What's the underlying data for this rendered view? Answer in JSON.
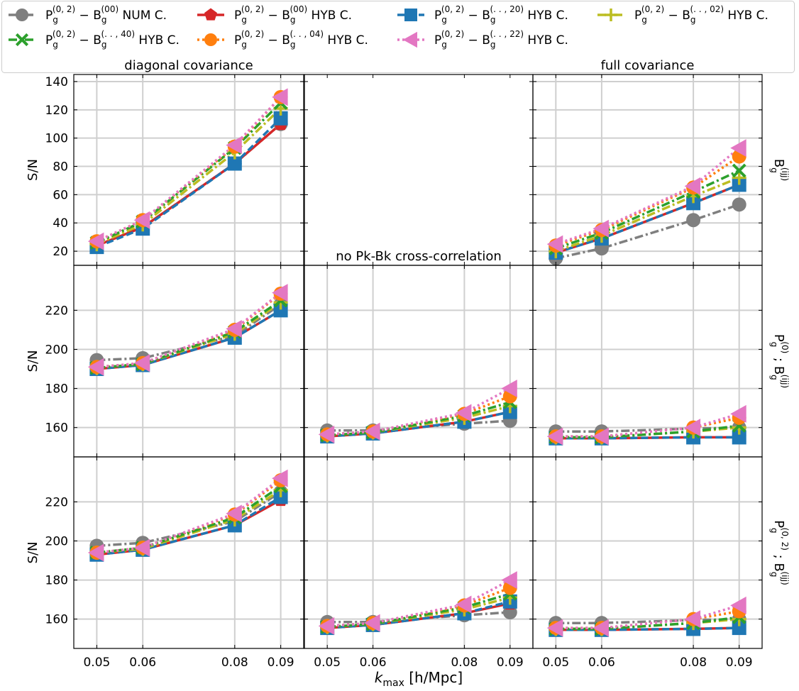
{
  "legend": {
    "position": "top",
    "entries": [
      {
        "name": "P_g^(0,2) − B_g^(00) NUM C.",
        "main": "P",
        "sub1": "g",
        "sup1": "(0, 2)",
        "dash": " − B",
        "sub2": "g",
        "sup2": "(00)",
        "tail": " NUM C.",
        "color": "#7f7f7f",
        "marker": "circle",
        "line": "dashdot"
      },
      {
        "name": "P_g^(0,2) − B_g^(00) HYB C.",
        "main": "P",
        "sub1": "g",
        "sup1": "(0, 2)",
        "dash": " − B",
        "sub2": "g",
        "sup2": "(00)",
        "tail": " HYB C.",
        "color": "#d62728",
        "marker": "pentagon",
        "line": "solid"
      },
      {
        "name": "P_g^(0,2) − B_g^(..,20) HYB C.",
        "main": "P",
        "sub1": "g",
        "sup1": "(0, 2)",
        "dash": " − B",
        "sub2": "g",
        "sup2": "(. . , 20)",
        "tail": " HYB C.",
        "color": "#1f77b4",
        "marker": "square",
        "line": "dashed"
      },
      {
        "name": "P_g^(0,2) − B_g^(..,02) HYB C.",
        "main": "P",
        "sub1": "g",
        "sup1": "(0, 2)",
        "dash": " − B",
        "sub2": "g",
        "sup2": "(. . , 02)",
        "tail": " HYB C.",
        "color": "#bcbd22",
        "marker": "plus",
        "line": "dashdot"
      },
      {
        "name": "P_g^(0,2) − B_g^(..,40) HYB C.",
        "main": "P",
        "sub1": "g",
        "sup1": "(0, 2)",
        "dash": " − B",
        "sub2": "g",
        "sup2": "(. . , 40)",
        "tail": " HYB C.",
        "color": "#2ca02c",
        "marker": "x",
        "line": "dashdot"
      },
      {
        "name": "P_g^(0,2) − B_g^(..,04) HYB C.",
        "main": "P",
        "sub1": "g",
        "sup1": "(0, 2)",
        "dash": " − B",
        "sub2": "g",
        "sup2": "(. . , 04)",
        "tail": " HYB C.",
        "color": "#ff7f0e",
        "marker": "circle",
        "line": "dotted"
      },
      {
        "name": "P_g^(0,2) − B_g^(..,22) HYB C.",
        "main": "P",
        "sub1": "g",
        "sup1": "(0, 2)",
        "dash": " − B",
        "sub2": "g",
        "sup2": "(. . , 22)",
        "tail": " HYB C.",
        "color": "#e377c2",
        "marker": "triangle-left",
        "line": "dotted"
      }
    ]
  },
  "xlabel": {
    "k": "k",
    "sub": "max",
    "rest": "   [h/Mpc]"
  },
  "ylabel": "S/N",
  "row_labels": [
    {
      "main": "B",
      "sub": "g",
      "sup": "(ijj)",
      "mid": "",
      "main2": "",
      "sub2": "",
      "sup2": ""
    },
    {
      "main": "P",
      "sub": "g",
      "sup": "(0)",
      "mid": " ; ",
      "main2": "B",
      "sub2": "g",
      "sup2": "(ijj)"
    },
    {
      "main": "P",
      "sub": "g",
      "sup": "(0, 2)",
      "mid": " ; ",
      "main2": "B",
      "sub2": "g",
      "sup2": "(ijj)"
    }
  ],
  "chart_data": {
    "type": "line",
    "grid": true,
    "x": [
      0.05,
      0.06,
      0.08,
      0.09
    ],
    "x_tick_labels": [
      "0.05",
      "0.06",
      "0.08",
      "0.09"
    ],
    "column_titles": [
      "diagonal covariance",
      "no Pk-Bk cross-correlation",
      "full covariance"
    ],
    "panels": [
      {
        "row": 0,
        "col": 0,
        "title": "diagonal covariance",
        "ylim": [
          10,
          145
        ],
        "yticks": [
          20,
          40,
          60,
          80,
          100,
          120,
          140
        ],
        "series": [
          [
            24,
            37,
            82,
            110
          ],
          [
            24,
            37,
            82,
            110
          ],
          [
            23,
            36,
            82,
            114
          ],
          [
            25,
            39,
            90,
            121
          ],
          [
            26,
            41,
            93,
            125
          ],
          [
            27,
            42,
            94,
            129
          ],
          [
            27,
            42,
            95,
            129
          ]
        ]
      },
      {
        "row": 0,
        "col": 1,
        "title": "",
        "empty": true,
        "ylim": [
          10,
          145
        ],
        "yticks": [],
        "series": []
      },
      {
        "row": 0,
        "col": 2,
        "title": "full covariance",
        "ylim": [
          10,
          145
        ],
        "yticks": [],
        "series": [
          [
            15,
            22,
            42,
            53
          ],
          [
            19,
            29,
            54,
            67
          ],
          [
            19,
            29,
            54,
            67
          ],
          [
            20,
            31,
            59,
            72
          ],
          [
            22,
            33,
            62,
            77
          ],
          [
            24,
            35,
            65,
            87
          ],
          [
            25,
            36,
            66,
            93
          ]
        ]
      },
      {
        "row": 1,
        "col": 0,
        "title": "",
        "ylim": [
          145,
          243
        ],
        "yticks": [
          160,
          180,
          200,
          220
        ],
        "series": [
          [
            194.5,
            195.5,
            207,
            223
          ],
          [
            190,
            192,
            206,
            220
          ],
          [
            190,
            192,
            206,
            220
          ],
          [
            190.5,
            192.5,
            208,
            224
          ],
          [
            190.5,
            192.5,
            209,
            225
          ],
          [
            191,
            193,
            210,
            228.5
          ],
          [
            191,
            193,
            210.5,
            229
          ]
        ]
      },
      {
        "row": 1,
        "col": 1,
        "title": "no Pk-Bk cross-correlation",
        "ylim": [
          145,
          243
        ],
        "yticks": [],
        "series": [
          [
            158.5,
            158.5,
            162,
            163.5
          ],
          [
            155.5,
            157,
            163,
            168
          ],
          [
            155.5,
            157,
            163,
            168
          ],
          [
            156,
            157.5,
            165,
            171
          ],
          [
            156,
            157.5,
            166,
            173
          ],
          [
            156.5,
            158,
            167,
            176
          ],
          [
            156.5,
            158,
            167.5,
            180
          ]
        ]
      },
      {
        "row": 1,
        "col": 2,
        "title": "",
        "ylim": [
          145,
          243
        ],
        "yticks": [],
        "series": [
          [
            158,
            158,
            159.5,
            160
          ],
          [
            154.5,
            154.5,
            155,
            155
          ],
          [
            154.5,
            154.5,
            155,
            155
          ],
          [
            155,
            155,
            158,
            160
          ],
          [
            155,
            155,
            158,
            161
          ],
          [
            155.5,
            155.5,
            160,
            165
          ],
          [
            155.5,
            155.5,
            160,
            167
          ]
        ]
      },
      {
        "row": 2,
        "col": 0,
        "title": "",
        "ylim": [
          145,
          243
        ],
        "yticks": [
          160,
          180,
          200,
          220
        ],
        "series": [
          [
            197.5,
            199,
            210,
            225
          ],
          [
            193,
            195.5,
            208,
            221
          ],
          [
            193,
            195.5,
            208,
            222.5
          ],
          [
            194,
            196,
            211,
            226
          ],
          [
            194,
            196.5,
            212,
            228
          ],
          [
            194,
            196.5,
            213.5,
            231
          ],
          [
            194,
            196.5,
            214,
            232
          ]
        ]
      },
      {
        "row": 2,
        "col": 1,
        "title": "",
        "ylim": [
          145,
          243
        ],
        "yticks": [],
        "series": [
          [
            158.5,
            158.5,
            162,
            163.5
          ],
          [
            155.5,
            157,
            163,
            168
          ],
          [
            155.5,
            157,
            163,
            169
          ],
          [
            156,
            157.5,
            165,
            171
          ],
          [
            156,
            157.5,
            166,
            173
          ],
          [
            156.5,
            158,
            167,
            176
          ],
          [
            156.5,
            158,
            167.5,
            180
          ]
        ]
      },
      {
        "row": 2,
        "col": 2,
        "title": "",
        "ylim": [
          145,
          243
        ],
        "yticks": [],
        "series": [
          [
            158,
            158,
            159.5,
            160
          ],
          [
            154.5,
            154.5,
            155,
            155.5
          ],
          [
            154.5,
            154.5,
            155,
            155.5
          ],
          [
            155,
            155,
            158,
            160
          ],
          [
            155,
            155,
            158,
            161
          ],
          [
            155.5,
            155.5,
            160,
            164
          ],
          [
            155.5,
            155.5,
            160,
            167
          ]
        ]
      }
    ]
  }
}
